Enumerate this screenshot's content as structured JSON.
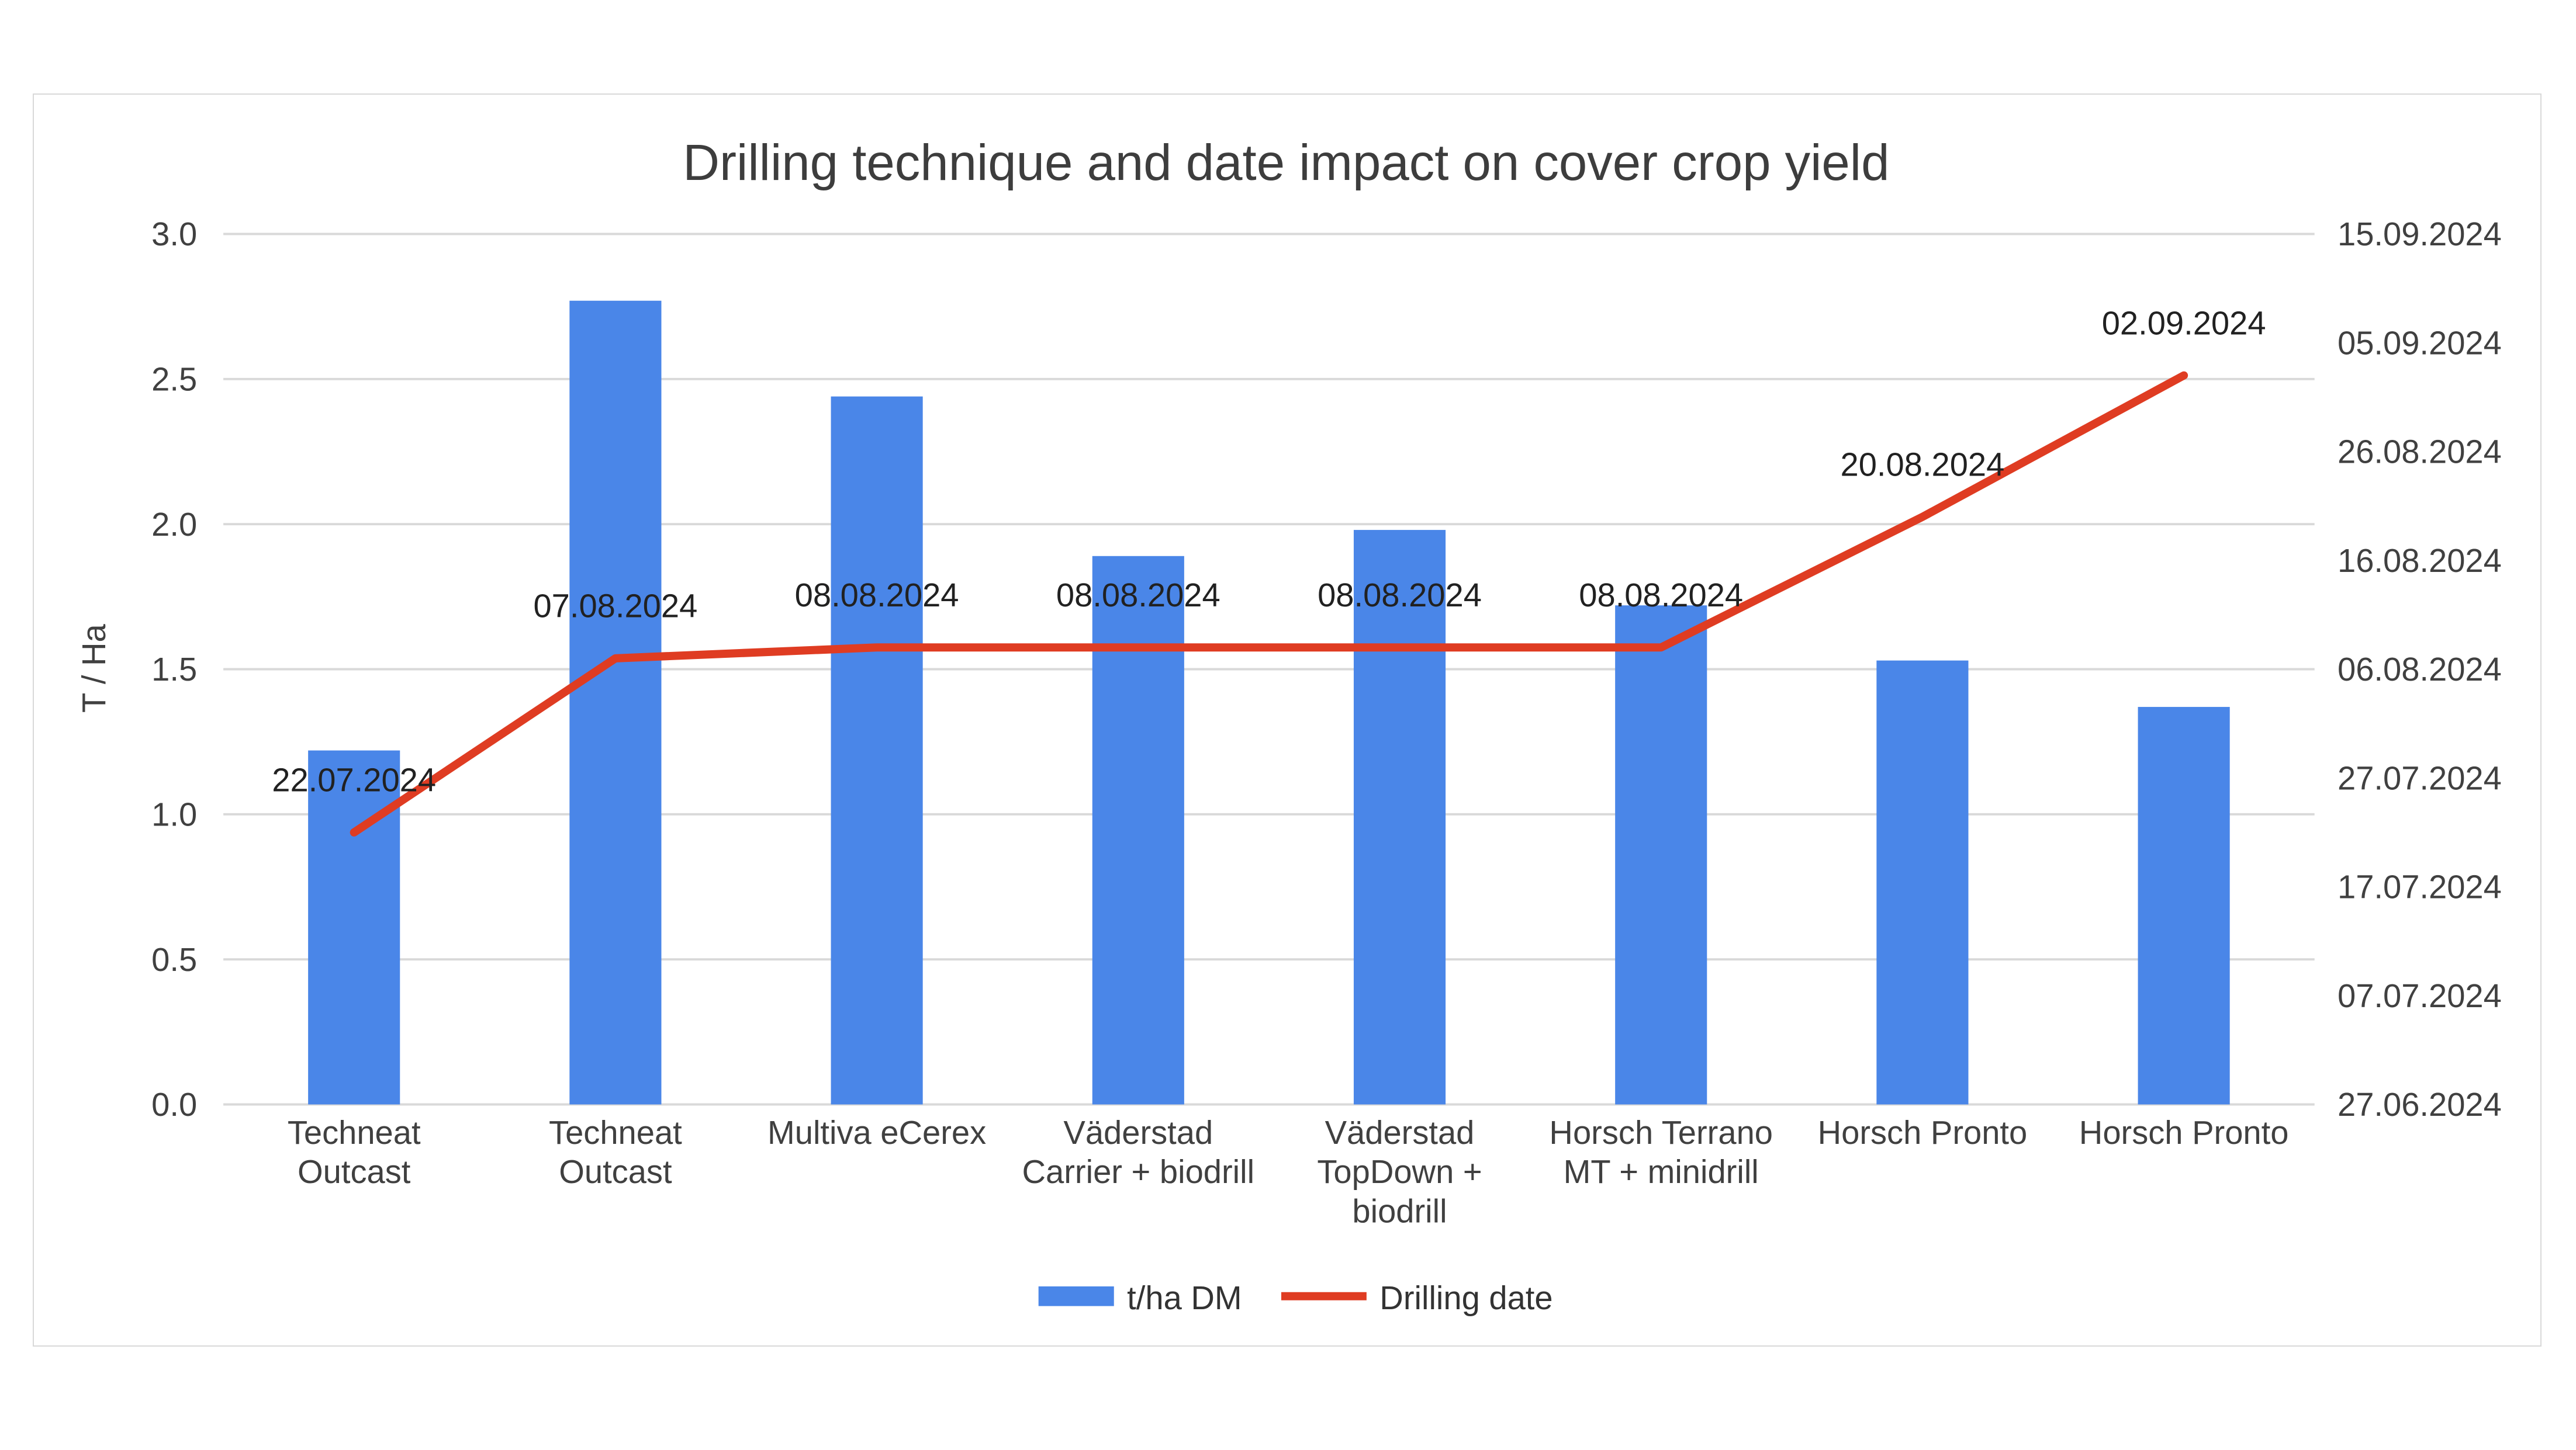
{
  "chart": {
    "title": "Drilling technique and date impact on cover crop yield",
    "ylabel": "T / Ha",
    "legend": {
      "bars": "t/ha DM",
      "line": "Drilling date"
    }
  },
  "chart_data": {
    "type": "bar",
    "subtype": "combo-bar-line-dual-axis",
    "title": "Drilling technique and date impact on cover crop yield",
    "xlabel": "",
    "ylabel": "T / Ha",
    "ylim": [
      0.0,
      3.0
    ],
    "grid": "horizontal",
    "legend_position": "bottom",
    "categories": [
      [
        "Techneat",
        "Outcast"
      ],
      [
        "Techneat",
        "Outcast"
      ],
      [
        "Multiva eCerex"
      ],
      [
        "Väderstad",
        "Carrier + biodrill"
      ],
      [
        "Väderstad",
        "TopDown +",
        "biodrill"
      ],
      [
        "Horsch Terrano",
        "MT + minidrill"
      ],
      [
        "Horsch Pronto"
      ],
      [
        "Horsch Pronto"
      ]
    ],
    "series": [
      {
        "name": "t/ha DM",
        "type": "bar",
        "axis": "left",
        "color": "#4a86e8",
        "values": [
          1.22,
          2.77,
          2.44,
          1.89,
          1.98,
          1.72,
          1.53,
          1.37
        ]
      },
      {
        "name": "Drilling date",
        "type": "line",
        "axis": "right",
        "color": "#df3c22",
        "labels": [
          "22.07.2024",
          "07.08.2024",
          "08.08.2024",
          "08.08.2024",
          "08.08.2024",
          "08.08.2024",
          "20.08.2024",
          "02.09.2024"
        ],
        "values_iso": [
          "2024-07-22",
          "2024-08-07",
          "2024-08-08",
          "2024-08-08",
          "2024-08-08",
          "2024-08-08",
          "2024-08-20",
          "2024-09-02"
        ]
      }
    ],
    "y_ticks_left": [
      0.0,
      0.5,
      1.0,
      1.5,
      2.0,
      2.5,
      3.0
    ],
    "y_ticks_right": [
      {
        "label": "15.09.2024",
        "iso": "2024-09-15"
      },
      {
        "label": "05.09.2024",
        "iso": "2024-09-05"
      },
      {
        "label": "26.08.2024",
        "iso": "2024-08-26"
      },
      {
        "label": "16.08.2024",
        "iso": "2024-08-16"
      },
      {
        "label": "06.08.2024",
        "iso": "2024-08-06"
      },
      {
        "label": "27.07.2024",
        "iso": "2024-07-27"
      },
      {
        "label": "17.07.2024",
        "iso": "2024-07-17"
      },
      {
        "label": "07.07.2024",
        "iso": "2024-07-07"
      },
      {
        "label": "27.06.2024",
        "iso": "2024-06-27"
      }
    ],
    "right_axis_range_iso": [
      "2024-06-27",
      "2024-09-15"
    ],
    "colors": {
      "bar": "#4a86e8",
      "line": "#df3c22",
      "gridline": "#d9d9d9",
      "text": "#404040"
    }
  }
}
